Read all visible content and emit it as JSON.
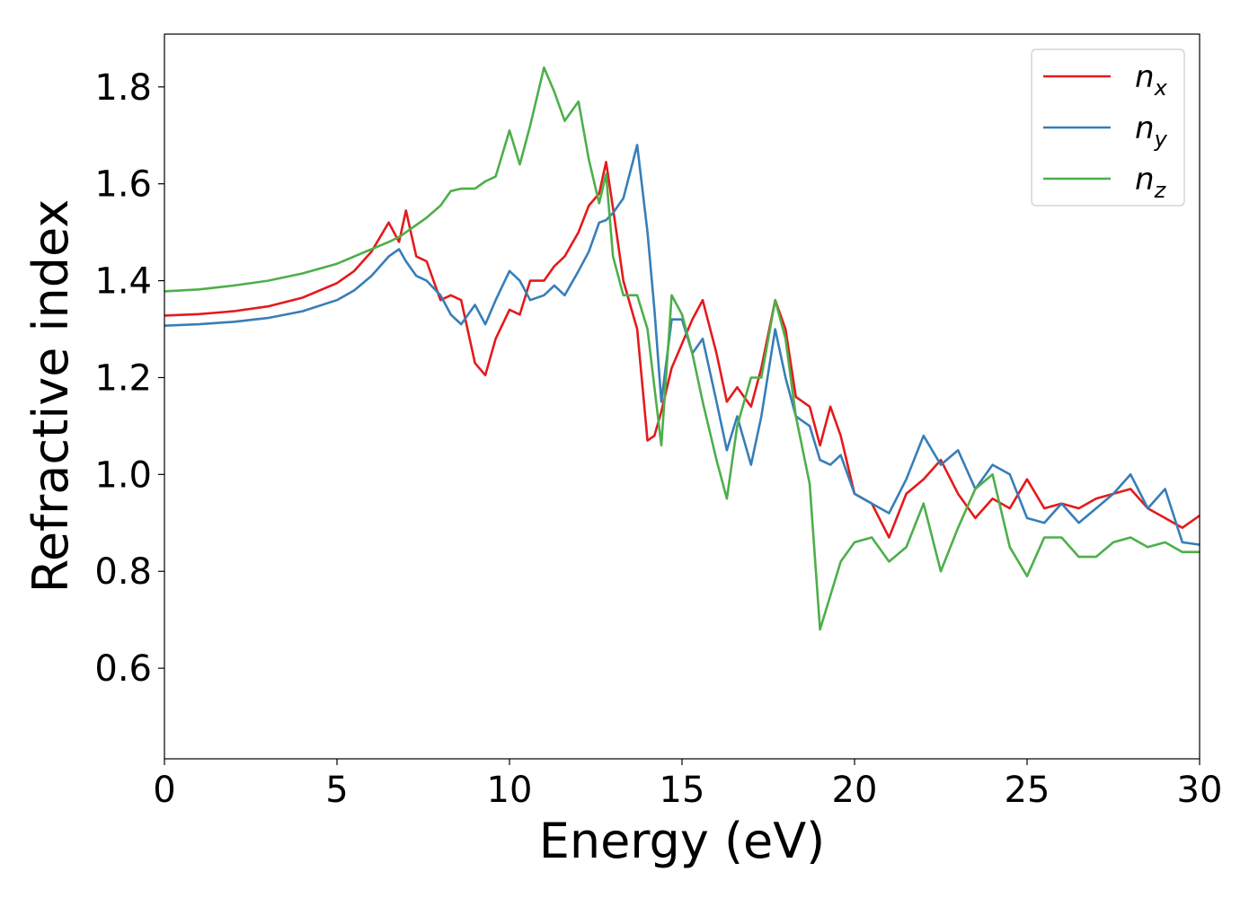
{
  "chart_data": {
    "type": "line",
    "xlabel": "Energy (eV)",
    "ylabel": "Refractive index",
    "x": [
      0,
      1,
      2,
      3,
      4,
      5,
      5.5,
      6,
      6.5,
      6.8,
      7,
      7.3,
      7.6,
      8,
      8.3,
      8.6,
      9,
      9.3,
      9.6,
      10,
      10.3,
      10.6,
      11,
      11.3,
      11.6,
      12,
      12.3,
      12.6,
      12.8,
      13,
      13.3,
      13.7,
      14,
      14.2,
      14.4,
      14.7,
      15,
      15.3,
      15.6,
      16,
      16.3,
      16.6,
      17,
      17.3,
      17.7,
      18,
      18.3,
      18.7,
      19,
      19.3,
      19.6,
      20,
      20.5,
      21,
      21.5,
      22,
      22.5,
      23,
      23.5,
      24,
      24.5,
      25,
      25.5,
      26,
      26.5,
      27,
      27.5,
      28,
      28.5,
      29,
      29.5,
      30
    ],
    "series": [
      {
        "name": "n_x",
        "color": "#e41a1c",
        "values": [
          1.328,
          1.331,
          1.337,
          1.347,
          1.365,
          1.395,
          1.42,
          1.46,
          1.52,
          1.48,
          1.545,
          1.45,
          1.44,
          1.36,
          1.37,
          1.36,
          1.23,
          1.205,
          1.28,
          1.34,
          1.33,
          1.4,
          1.4,
          1.43,
          1.45,
          1.5,
          1.555,
          1.58,
          1.645,
          1.55,
          1.4,
          1.3,
          1.07,
          1.08,
          1.13,
          1.22,
          1.27,
          1.32,
          1.36,
          1.25,
          1.15,
          1.18,
          1.14,
          1.22,
          1.36,
          1.3,
          1.16,
          1.14,
          1.06,
          1.14,
          1.08,
          0.96,
          0.94,
          0.87,
          0.96,
          0.99,
          1.03,
          0.96,
          0.91,
          0.95,
          0.93,
          0.99,
          0.93,
          0.94,
          0.93,
          0.95,
          0.96,
          0.97,
          0.93,
          0.91,
          0.89,
          0.915
        ]
      },
      {
        "name": "n_y",
        "color": "#377eb8",
        "values": [
          1.307,
          1.31,
          1.315,
          1.323,
          1.337,
          1.36,
          1.38,
          1.41,
          1.45,
          1.465,
          1.44,
          1.41,
          1.4,
          1.37,
          1.33,
          1.31,
          1.35,
          1.31,
          1.36,
          1.42,
          1.4,
          1.36,
          1.37,
          1.39,
          1.37,
          1.42,
          1.46,
          1.52,
          1.525,
          1.54,
          1.57,
          1.68,
          1.5,
          1.34,
          1.15,
          1.32,
          1.32,
          1.25,
          1.28,
          1.15,
          1.05,
          1.12,
          1.02,
          1.12,
          1.3,
          1.2,
          1.12,
          1.1,
          1.03,
          1.02,
          1.04,
          0.96,
          0.94,
          0.92,
          0.99,
          1.08,
          1.02,
          1.05,
          0.97,
          1.02,
          1.0,
          0.91,
          0.9,
          0.94,
          0.9,
          0.93,
          0.96,
          1.0,
          0.93,
          0.97,
          0.86,
          0.855
        ]
      },
      {
        "name": "n_z",
        "color": "#4daf4a",
        "values": [
          1.378,
          1.382,
          1.39,
          1.4,
          1.415,
          1.435,
          1.45,
          1.465,
          1.48,
          1.49,
          1.5,
          1.515,
          1.53,
          1.555,
          1.585,
          1.59,
          1.59,
          1.605,
          1.615,
          1.71,
          1.64,
          1.72,
          1.84,
          1.79,
          1.73,
          1.77,
          1.65,
          1.56,
          1.62,
          1.45,
          1.37,
          1.37,
          1.3,
          1.18,
          1.06,
          1.37,
          1.33,
          1.25,
          1.15,
          1.03,
          0.95,
          1.1,
          1.2,
          1.2,
          1.36,
          1.28,
          1.12,
          0.98,
          0.68,
          0.75,
          0.82,
          0.86,
          0.87,
          0.82,
          0.85,
          0.94,
          0.8,
          0.89,
          0.97,
          1.0,
          0.85,
          0.79,
          0.87,
          0.87,
          0.83,
          0.83,
          0.86,
          0.87,
          0.85,
          0.86,
          0.84,
          0.84
        ]
      }
    ],
    "xlim": [
      0,
      30
    ],
    "xticks": [
      0,
      5,
      10,
      15,
      20,
      25,
      30
    ],
    "ylim": [
      0.413,
      1.909
    ],
    "yticks": [
      0.6,
      0.8,
      {
        "value": 1,
        "label": "1.0"
      },
      1.2,
      1.4,
      1.6,
      1.8
    ],
    "legend": "upper right"
  }
}
